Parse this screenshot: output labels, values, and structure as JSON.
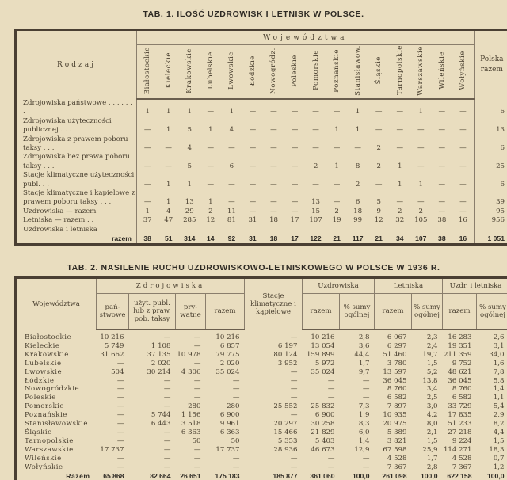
{
  "table1": {
    "title": "TAB. 1. ILOŚĆ UZDROWISK I LETNISK W POLSCE.",
    "row_header": "Rodzaj",
    "group_header": "Województwa",
    "total_header": "Polska razem",
    "columns": [
      "Białostockie",
      "Kieleckie",
      "Krakowskie",
      "Lubelskie",
      "Lwowskie",
      "Łódzkie",
      "Nowogródz.",
      "Poleskie",
      "Pomorskie",
      "Poznańskie",
      "Stanisławow.",
      "Śląskie",
      "Tarnopolskie",
      "Warszawskie",
      "Wileńskie",
      "Wołyńskie"
    ],
    "rows": [
      {
        "label": "Zdrojowiska państwowe . . . . . . .",
        "values": [
          "1",
          "1",
          "1",
          "—",
          "1",
          "—",
          "—",
          "—",
          "—",
          "—",
          "1",
          "—",
          "—",
          "1",
          "—",
          "—"
        ],
        "total": "6"
      },
      {
        "label": "Zdrojowiska użyteczności publicznej . . .",
        "values": [
          "—",
          "1",
          "5",
          "1",
          "4",
          "—",
          "—",
          "—",
          "—",
          "1",
          "1",
          "—",
          "—",
          "—",
          "—",
          "—"
        ],
        "total": "13"
      },
      {
        "label": "Zdrojowiska z prawem poboru taksy . . .",
        "values": [
          "—",
          "—",
          "4",
          "—",
          "—",
          "—",
          "—",
          "—",
          "—",
          "—",
          "—",
          "2",
          "—",
          "—",
          "—",
          "—"
        ],
        "total": "6"
      },
      {
        "label": "Zdrojowiska bez prawa poboru taksy . . .",
        "values": [
          "—",
          "—",
          "5",
          "—",
          "6",
          "—",
          "—",
          "—",
          "2",
          "1",
          "8",
          "2",
          "1",
          "—",
          "—",
          "—"
        ],
        "total": "25"
      },
      {
        "label": "Stacje klimatyczne użyteczności publ. . .",
        "values": [
          "—",
          "1",
          "1",
          "—",
          "—",
          "—",
          "—",
          "—",
          "—",
          "—",
          "2",
          "—",
          "1",
          "1",
          "—",
          "—"
        ],
        "total": "6"
      },
      {
        "label": "Stacje klimatyczne i kąpielowe z prawem poboru taksy . . .",
        "values": [
          "—",
          "1",
          "13",
          "1",
          "—",
          "—",
          "—",
          "—",
          "13",
          "—",
          "6",
          "5",
          "—",
          "—",
          "—",
          "—"
        ],
        "total": "39"
      },
      {
        "label": "Uzdrowiska — razem",
        "values": [
          "1",
          "4",
          "29",
          "2",
          "11",
          "—",
          "—",
          "—",
          "15",
          "2",
          "18",
          "9",
          "2",
          "2",
          "—",
          "—"
        ],
        "total": "95"
      },
      {
        "label": "Letniska — razem . .",
        "values": [
          "37",
          "47",
          "285",
          "12",
          "81",
          "31",
          "18",
          "17",
          "107",
          "19",
          "99",
          "12",
          "32",
          "105",
          "38",
          "16"
        ],
        "total": "956"
      }
    ],
    "sum_row": {
      "label_line1": "Uzdrowiska i letniska",
      "label_line2": "razem",
      "values": [
        "38",
        "51",
        "314",
        "14",
        "92",
        "31",
        "18",
        "17",
        "122",
        "21",
        "117",
        "21",
        "34",
        "107",
        "38",
        "16"
      ],
      "total": "1 051"
    }
  },
  "table2": {
    "title": "TAB. 2. NASILENIE RUCHU UZDROWISKOWO-LETNISKOWEGO W POLSCE W 1936 R.",
    "headers": {
      "wojewodztwa": "Województwa",
      "zdrojowiska": "Zdrojowiska",
      "panstwowe": "pań-stwowe",
      "uzyt": "użyt. publ. lub z praw. pob. taksy",
      "prywatne": "pry-watne",
      "razem": "razem",
      "stacje": "Stacje klimatyczne i kąpielowe",
      "uzdrowiska": "Uzdrowiska",
      "letniska": "Letniska",
      "uzdr_letn": "Uzdr. i letniska",
      "pct": "% sumy ogólnej"
    },
    "rows": [
      {
        "label": "Białostockie",
        "values": [
          "10 216",
          "—",
          "—",
          "10 216",
          "—",
          "10 216",
          "2,8",
          "6 067",
          "2,3",
          "16 283",
          "2,6"
        ]
      },
      {
        "label": "Kieleckie",
        "values": [
          "5 749",
          "1 108",
          "—",
          "6 857",
          "6 197",
          "13 054",
          "3,6",
          "6 297",
          "2,4",
          "19 351",
          "3,1"
        ]
      },
      {
        "label": "Krakowskie",
        "values": [
          "31 662",
          "37 135",
          "10 978",
          "79 775",
          "80 124",
          "159 899",
          "44,4",
          "51 460",
          "19,7",
          "211 359",
          "34,0"
        ]
      },
      {
        "label": "Lubelskie",
        "values": [
          "—",
          "2 020",
          "—",
          "2 020",
          "3 952",
          "5 972",
          "1,7",
          "3 780",
          "1,5",
          "9 752",
          "1,6"
        ]
      },
      {
        "label": "Lwowskie",
        "values": [
          "504",
          "30 214",
          "4 306",
          "35 024",
          "—",
          "35 024",
          "9,7",
          "13 597",
          "5,2",
          "48 621",
          "7,8"
        ]
      },
      {
        "label": "Łódzkie",
        "values": [
          "—",
          "—",
          "—",
          "—",
          "—",
          "—",
          "—",
          "36 045",
          "13,8",
          "36 045",
          "5,8"
        ]
      },
      {
        "label": "Nowogródzkie",
        "values": [
          "—",
          "—",
          "—",
          "—",
          "—",
          "—",
          "—",
          "8 760",
          "3,4",
          "8 760",
          "1,4"
        ]
      },
      {
        "label": "Poleskie",
        "values": [
          "—",
          "—",
          "—",
          "—",
          "—",
          "—",
          "—",
          "6 582",
          "2,5",
          "6 582",
          "1,1"
        ]
      },
      {
        "label": "Pomorskie",
        "values": [
          "—",
          "—",
          "280",
          "280",
          "25 552",
          "25 832",
          "7,3",
          "7 897",
          "3,0",
          "33 729",
          "5,4"
        ]
      },
      {
        "label": "Poznańskie",
        "values": [
          "—",
          "5 744",
          "1 156",
          "6 900",
          "—",
          "6 900",
          "1,9",
          "10 935",
          "4,2",
          "17 835",
          "2,9"
        ]
      },
      {
        "label": "Stanisławowskie",
        "values": [
          "—",
          "6 443",
          "3 518",
          "9 961",
          "20 297",
          "30 258",
          "8,3",
          "20 975",
          "8,0",
          "51 233",
          "8,2"
        ]
      },
      {
        "label": "Śląskie",
        "values": [
          "—",
          "—",
          "6 363",
          "6 363",
          "15 466",
          "21 829",
          "6,0",
          "5 389",
          "2,1",
          "27 218",
          "4,4"
        ]
      },
      {
        "label": "Tarnopolskie",
        "values": [
          "—",
          "—",
          "50",
          "50",
          "5 353",
          "5 403",
          "1,4",
          "3 821",
          "1,5",
          "9 224",
          "1,5"
        ]
      },
      {
        "label": "Warszawskie",
        "values": [
          "17 737",
          "—",
          "—",
          "17 737",
          "28 936",
          "46 673",
          "12,9",
          "67 598",
          "25,9",
          "114 271",
          "18,3"
        ]
      },
      {
        "label": "Wileńskie",
        "values": [
          "—",
          "—",
          "—",
          "—",
          "—",
          "—",
          "—",
          "4 528",
          "1,7",
          "4 528",
          "0,7"
        ]
      },
      {
        "label": "Wołyńskie",
        "values": [
          "—",
          "—",
          "—",
          "—",
          "—",
          "—",
          "—",
          "7 367",
          "2,8",
          "7 367",
          "1,2"
        ]
      }
    ],
    "sum_row": {
      "label": "Razem",
      "values": [
        "65 868",
        "82 664",
        "26 651",
        "175 183",
        "185 877",
        "361 060",
        "100,0",
        "261 098",
        "100,0",
        "622 158",
        "100,0"
      ]
    }
  }
}
